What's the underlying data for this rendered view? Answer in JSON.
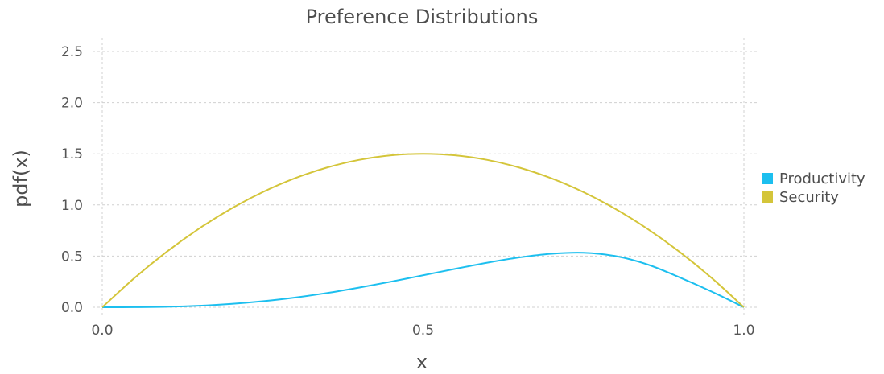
{
  "chart_data": {
    "type": "line",
    "title": "Preference Distributions",
    "xlabel": "x",
    "ylabel": "pdf(x)",
    "xlim": [
      0,
      1
    ],
    "ylim": [
      0,
      2.5
    ],
    "xticks": [
      "0.0",
      "0.5",
      "1.0"
    ],
    "yticks": [
      "0.0",
      "0.5",
      "1.0",
      "1.5",
      "2.0",
      "2.5"
    ],
    "grid": true,
    "legend_position": "right",
    "series": [
      {
        "name": "Productivity",
        "color": "#1cbfef",
        "x": [
          0,
          0.05,
          0.1,
          0.15,
          0.2,
          0.25,
          0.3,
          0.35,
          0.4,
          0.45,
          0.5,
          0.55,
          0.6,
          0.65,
          0.7,
          0.75,
          0.8,
          0.85,
          0.9,
          0.95,
          1.0
        ],
        "y": [
          0,
          0.0006,
          0.0045,
          0.0143,
          0.032,
          0.0586,
          0.0945,
          0.139,
          0.192,
          0.25,
          0.3125,
          0.3754,
          0.4355,
          0.4869,
          0.5227,
          0.5326,
          0.5,
          0.4176,
          0.2916,
          0.1523,
          0
        ]
      },
      {
        "name": "Security",
        "color": "#d4c53a",
        "x": [
          0,
          0.05,
          0.1,
          0.15,
          0.2,
          0.25,
          0.3,
          0.35,
          0.4,
          0.45,
          0.5,
          0.55,
          0.6,
          0.65,
          0.7,
          0.75,
          0.8,
          0.85,
          0.9,
          0.95,
          1.0
        ],
        "y": [
          0,
          0.285,
          0.54,
          0.765,
          0.96,
          1.125,
          1.26,
          1.365,
          1.44,
          1.485,
          1.5,
          1.485,
          1.44,
          1.365,
          1.26,
          1.125,
          0.96,
          0.765,
          0.54,
          0.285,
          0
        ]
      }
    ]
  }
}
